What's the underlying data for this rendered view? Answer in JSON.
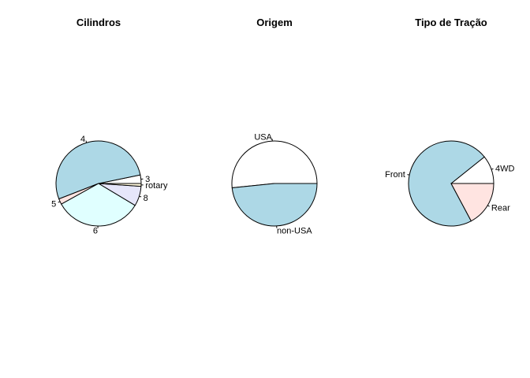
{
  "chart_data": [
    {
      "type": "pie",
      "title": "Cilindros",
      "categories": [
        "3",
        "4",
        "5",
        "6",
        "8",
        "rotary"
      ],
      "values": [
        3,
        49,
        2,
        31,
        7,
        1
      ],
      "colors": [
        "#ffffff",
        "#add8e6",
        "#ffe4e1",
        "#e0ffff",
        "#e6e6fa",
        "#fff8dc"
      ]
    },
    {
      "type": "pie",
      "title": "Origem",
      "categories": [
        "USA",
        "non-USA"
      ],
      "values": [
        48,
        45
      ],
      "colors": [
        "#ffffff",
        "#add8e6"
      ]
    },
    {
      "type": "pie",
      "title": "Tipo de Tração",
      "categories": [
        "4WD",
        "Front",
        "Rear"
      ],
      "values": [
        10,
        67,
        16
      ],
      "colors": [
        "#ffffff",
        "#add8e6",
        "#ffe4e1"
      ]
    }
  ]
}
